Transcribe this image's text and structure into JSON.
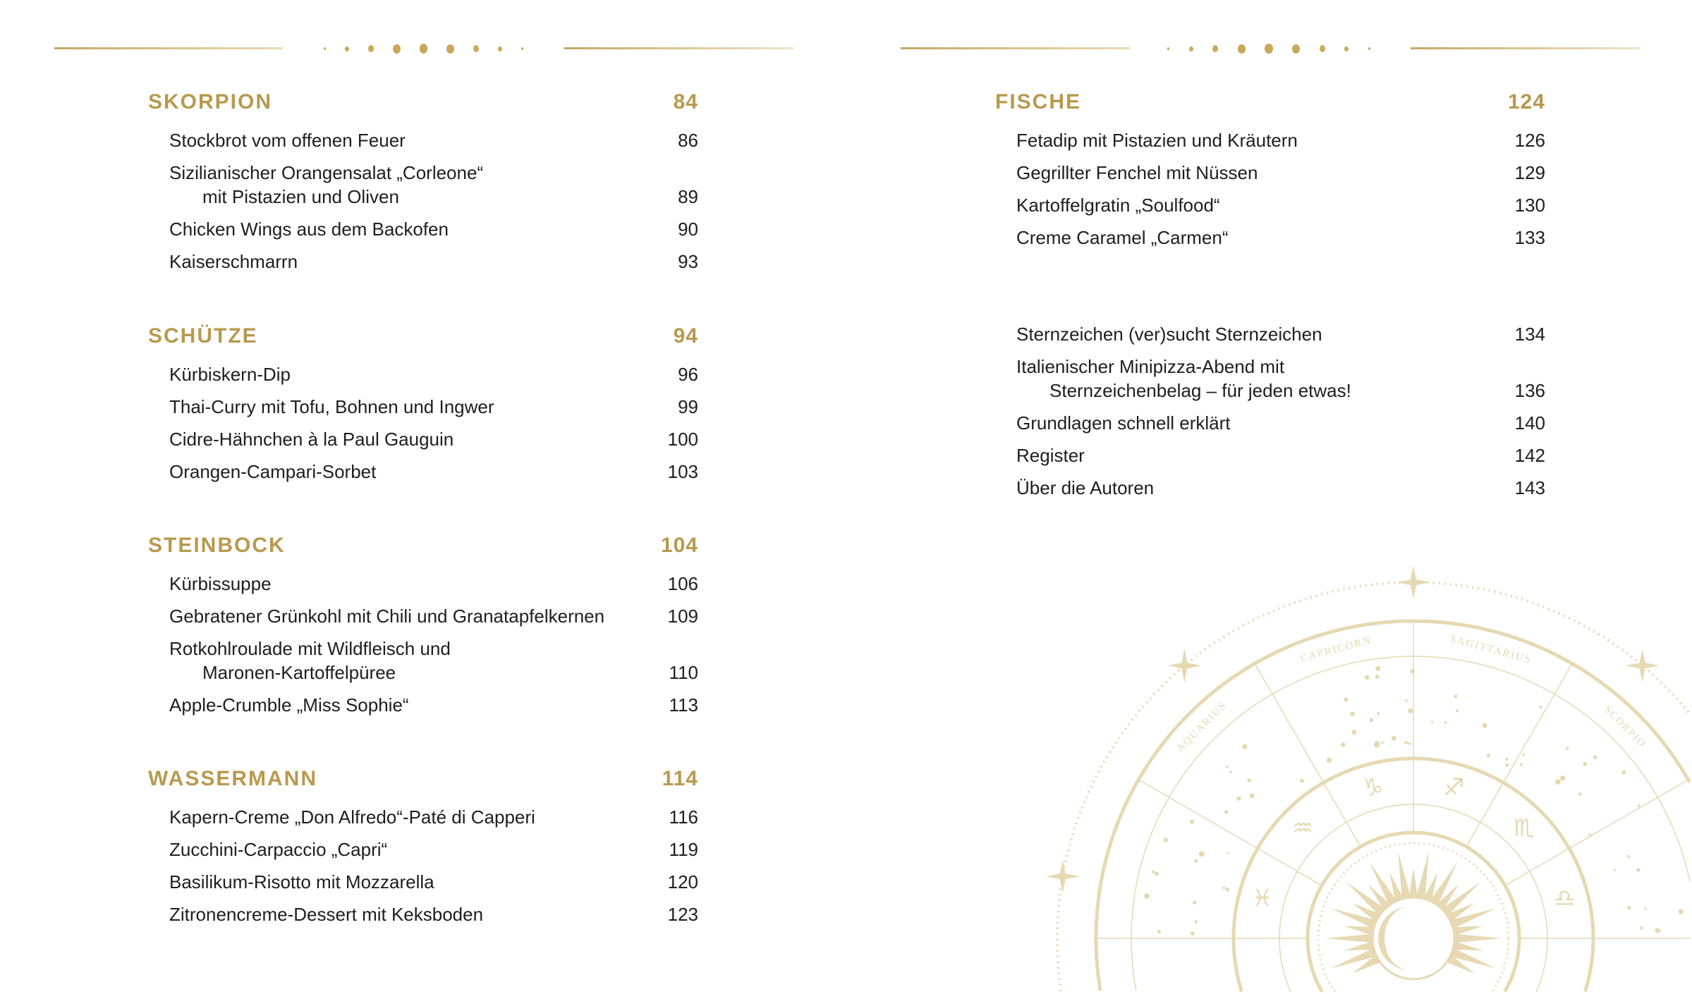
{
  "colors": {
    "gold": "#b89a4e",
    "text": "#1e1e1e",
    "wheel": "#e6d9b3"
  },
  "left_page": {
    "sections": [
      {
        "title": "SKORPION",
        "page": "84",
        "items": [
          {
            "title": "Stockbrot vom offenen Feuer",
            "page": "86"
          },
          {
            "title": "Sizilianischer Orangensalat „Corleone“",
            "title_line2": "mit Pistazien und Oliven",
            "page": "89"
          },
          {
            "title": "Chicken Wings aus dem Backofen",
            "page": "90"
          },
          {
            "title": "Kaiserschmarrn",
            "page": "93"
          }
        ]
      },
      {
        "title": "SCHÜTZE",
        "page": "94",
        "items": [
          {
            "title": "Kürbiskern-Dip",
            "page": "96"
          },
          {
            "title": "Thai-Curry mit Tofu, Bohnen und Ingwer",
            "page": "99"
          },
          {
            "title": "Cidre-Hähnchen à la Paul Gauguin",
            "page": "100"
          },
          {
            "title": "Orangen-Campari-Sorbet",
            "page": "103"
          }
        ]
      },
      {
        "title": "STEINBOCK",
        "page": "104",
        "items": [
          {
            "title": "Kürbissuppe",
            "page": "106"
          },
          {
            "title": "Gebratener Grünkohl mit Chili und Granatapfelkernen",
            "page": "109"
          },
          {
            "title": "Rotkohlroulade mit Wildfleisch und",
            "title_line2": "Maronen-Kartoffelpüree",
            "page": "110"
          },
          {
            "title": "Apple-Crumble „Miss Sophie“",
            "page": "113"
          }
        ]
      },
      {
        "title": "WASSERMANN",
        "page": "114",
        "items": [
          {
            "title": "Kapern-Creme „Don Alfredo“-Paté di Capperi",
            "page": "116"
          },
          {
            "title": "Zucchini-Carpaccio „Capri“",
            "page": "119"
          },
          {
            "title": "Basilikum-Risotto mit Mozzarella",
            "page": "120"
          },
          {
            "title": "Zitronencreme-Dessert mit Keksboden",
            "page": "123"
          }
        ]
      }
    ]
  },
  "right_page": {
    "sections": [
      {
        "title": "FISCHE",
        "page": "124",
        "items": [
          {
            "title": "Fetadip mit Pistazien und Kräutern",
            "page": "126"
          },
          {
            "title": "Gegrillter Fenchel mit Nüssen",
            "page": "129"
          },
          {
            "title": "Kartoffelgratin „Soulfood“",
            "page": "130"
          },
          {
            "title": "Creme Caramel „Carmen“",
            "page": "133"
          }
        ]
      }
    ],
    "extras": [
      {
        "title": "Sternzeichen (ver)sucht Sternzeichen",
        "page": "134"
      },
      {
        "title": "Italienischer Minipizza-Abend mit",
        "title_line2": "Sternzeichenbelag – für jeden etwas!",
        "page": "136"
      },
      {
        "title": "Grundlagen schnell erklärt",
        "page": "140"
      },
      {
        "title": "Register",
        "page": "142"
      },
      {
        "title": "Über die Autoren",
        "page": "143"
      }
    ],
    "illustration": {
      "name": "zodiac-wheel",
      "labels": [
        "CAPRICORN",
        "SAGITTARIUS",
        "SCORPIO",
        "AQUARIUS"
      ]
    }
  }
}
